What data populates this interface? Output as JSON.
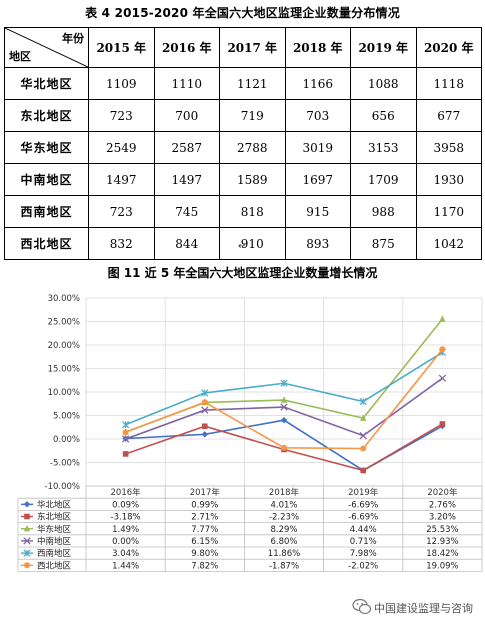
{
  "table": {
    "caption": "表 4   2015-2020 年全国六大地区监理企业数量分布情况",
    "corner_top": "年份",
    "corner_bottom": "地区",
    "years": [
      "2015 年",
      "2016 年",
      "2017 年",
      "2018 年",
      "2019 年",
      "2020 年"
    ],
    "rows": [
      {
        "region": "华北地区",
        "values": [
          "1109",
          "1110",
          "1121",
          "1166",
          "1088",
          "1118"
        ]
      },
      {
        "region": "东北地区",
        "values": [
          "723",
          "700",
          "719",
          "703",
          "656",
          "677"
        ]
      },
      {
        "region": "华东地区",
        "values": [
          "2549",
          "2587",
          "2788",
          "3019",
          "3153",
          "3958"
        ]
      },
      {
        "region": "中南地区",
        "values": [
          "1497",
          "1497",
          "1589",
          "1697",
          "1709",
          "1930"
        ]
      },
      {
        "region": "西南地区",
        "values": [
          "723",
          "745",
          "818",
          "915",
          "988",
          "1170"
        ]
      },
      {
        "region": "西北地区",
        "values": [
          "832",
          "844",
          "910",
          "893",
          "875",
          "1042"
        ]
      }
    ]
  },
  "figure": {
    "caption": "图 11   近 5 年全国六大地区监理企业数量增长情况"
  },
  "chart_data": {
    "type": "line",
    "categories": [
      "2016年",
      "2017年",
      "2018年",
      "2019年",
      "2020年"
    ],
    "ylim": [
      -10,
      30
    ],
    "yticks": [
      "-10.00%",
      "-5.00%",
      "0.00%",
      "5.00%",
      "10.00%",
      "15.00%",
      "20.00%",
      "25.00%",
      "30.00%"
    ],
    "grid": true,
    "legend_placement": "data-table",
    "series": [
      {
        "name": "华北地区",
        "color": "#4472c4",
        "marker": "diamond",
        "values": [
          0.09,
          0.99,
          4.01,
          -6.69,
          2.76
        ],
        "labels": [
          "0.09%",
          "0.99%",
          "4.01%",
          "-6.69%",
          "2.76%"
        ]
      },
      {
        "name": "东北地区",
        "color": "#c0504d",
        "marker": "square",
        "values": [
          -3.18,
          2.71,
          -2.23,
          -6.69,
          3.2
        ],
        "labels": [
          "-3.18%",
          "2.71%",
          "-2.23%",
          "-6.69%",
          "3.20%"
        ]
      },
      {
        "name": "华东地区",
        "color": "#9bbb59",
        "marker": "triangle",
        "values": [
          1.49,
          7.77,
          8.29,
          4.44,
          25.53
        ],
        "labels": [
          "1.49%",
          "7.77%",
          "8.29%",
          "4.44%",
          "25.53%"
        ]
      },
      {
        "name": "中南地区",
        "color": "#8064a2",
        "marker": "x",
        "values": [
          0.0,
          6.15,
          6.8,
          0.71,
          12.93
        ],
        "labels": [
          "0.00%",
          "6.15%",
          "6.80%",
          "0.71%",
          "12.93%"
        ]
      },
      {
        "name": "西南地区",
        "color": "#4bacc6",
        "marker": "star",
        "values": [
          3.04,
          9.8,
          11.86,
          7.98,
          18.42
        ],
        "labels": [
          "3.04%",
          "9.80%",
          "11.86%",
          "7.98%",
          "18.42%"
        ]
      },
      {
        "name": "西北地区",
        "color": "#f79646",
        "marker": "circle",
        "values": [
          1.44,
          7.82,
          -1.87,
          -2.02,
          19.09
        ],
        "labels": [
          "1.44%",
          "7.82%",
          "-1.87%",
          "-2.02%",
          "19.09%"
        ]
      }
    ]
  },
  "watermark": {
    "text": "中国建设监理与咨询",
    "icon": "wechat-icon"
  },
  "return_mark": "↵"
}
